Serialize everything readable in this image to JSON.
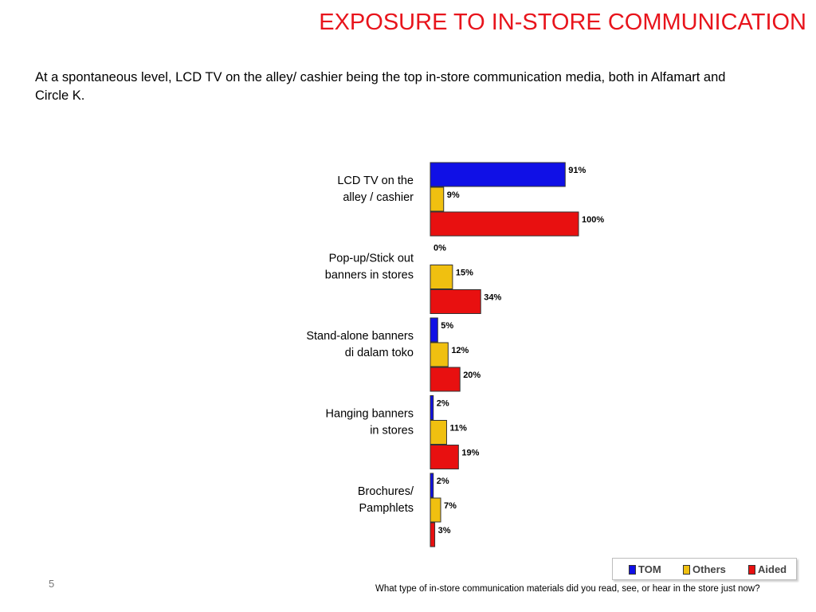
{
  "slide": {
    "title": "EXPOSURE TO IN-STORE COMMUNICATION",
    "subtitle": "At a spontaneous level, LCD TV on the alley/ cashier being the top in-store communication media, both in Alfamart and Circle K.",
    "page_number": "5",
    "footnote": "What type of in-store communication materials did you read, see, or hear in the store just now?"
  },
  "chart_data": {
    "type": "bar",
    "orientation": "horizontal",
    "categories": [
      [
        "LCD TV on the",
        "alley / cashier"
      ],
      [
        "Pop-up/Stick out",
        "banners in stores"
      ],
      [
        "Stand-alone banners",
        "di dalam toko"
      ],
      [
        "Hanging banners",
        "in stores"
      ],
      [
        "Brochures/",
        "Pamphlets"
      ]
    ],
    "series": [
      {
        "name": "TOM",
        "color": "#1010e6",
        "values": [
          91,
          0,
          5,
          2,
          2
        ],
        "labels": [
          "91%",
          "0%",
          "5%",
          "2%",
          "2%"
        ]
      },
      {
        "name": "Others",
        "color": "#f0c010",
        "values": [
          9,
          15,
          12,
          11,
          7
        ],
        "labels": [
          "9%",
          "15%",
          "12%",
          "11%",
          "7%"
        ]
      },
      {
        "name": "Aided",
        "color": "#e81010",
        "values": [
          100,
          34,
          20,
          19,
          3
        ],
        "labels": [
          "100%",
          "34%",
          "20%",
          "19%",
          "3%"
        ]
      }
    ],
    "xlim": [
      0,
      100
    ],
    "grid": false,
    "legend_position": "bottom-right"
  }
}
